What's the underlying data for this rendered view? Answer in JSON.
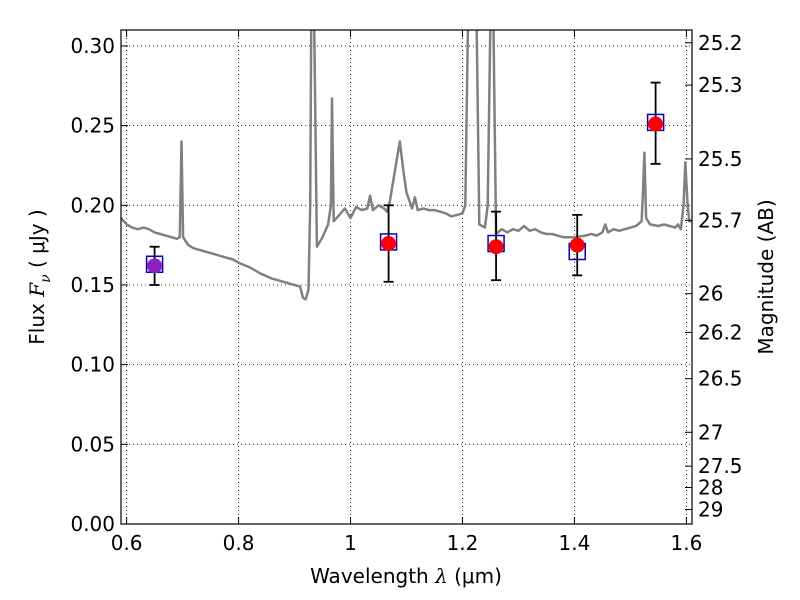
{
  "chart_data": {
    "type": "scatter",
    "xlabel": {
      "prefix": "Wavelength  ",
      "symbol": "λ",
      "unit": " (μm)"
    },
    "ylabel": {
      "prefix": "Flux  ",
      "symbol": "F",
      "subscript": "ν",
      "unit": "  ( μJy )"
    },
    "ylabel_right": "Magnitude (AB)",
    "xlim": [
      0.59,
      1.61
    ],
    "ylim": [
      0.0,
      0.31
    ],
    "grid": true,
    "x_ticks": [
      {
        "value": 0.6,
        "label": "0.6"
      },
      {
        "value": 0.8,
        "label": "0.8"
      },
      {
        "value": 1.0,
        "label": "1"
      },
      {
        "value": 1.2,
        "label": "1.2"
      },
      {
        "value": 1.4,
        "label": "1.4"
      },
      {
        "value": 1.6,
        "label": "1.6"
      }
    ],
    "y_ticks": [
      {
        "value": 0.0,
        "label": "0.00"
      },
      {
        "value": 0.05,
        "label": "0.05"
      },
      {
        "value": 0.1,
        "label": "0.10"
      },
      {
        "value": 0.15,
        "label": "0.15"
      },
      {
        "value": 0.2,
        "label": "0.20"
      },
      {
        "value": 0.25,
        "label": "0.25"
      },
      {
        "value": 0.3,
        "label": "0.30"
      }
    ],
    "magnitude_ticks": [
      {
        "mag": 25.2,
        "label": "25.2"
      },
      {
        "mag": 25.3,
        "label": "25.3"
      },
      {
        "mag": 25.5,
        "label": "25.5"
      },
      {
        "mag": 25.7,
        "label": "25.7"
      },
      {
        "mag": 26.0,
        "label": "26"
      },
      {
        "mag": 26.2,
        "label": "26.2"
      },
      {
        "mag": 26.5,
        "label": "26.5"
      },
      {
        "mag": 27.0,
        "label": "27"
      },
      {
        "mag": 27.5,
        "label": "27.5"
      },
      {
        "mag": 28.0,
        "label": "28"
      },
      {
        "mag": 29.0,
        "label": "29"
      }
    ],
    "series": [
      {
        "kind": "model-spectrum",
        "color": "#808080",
        "points": [
          [
            0.59,
            0.192
          ],
          [
            0.6,
            0.188
          ],
          [
            0.61,
            0.186
          ],
          [
            0.62,
            0.185
          ],
          [
            0.63,
            0.186
          ],
          [
            0.64,
            0.185
          ],
          [
            0.65,
            0.183
          ],
          [
            0.66,
            0.182
          ],
          [
            0.67,
            0.181
          ],
          [
            0.68,
            0.18
          ],
          [
            0.69,
            0.179
          ],
          [
            0.695,
            0.18
          ],
          [
            0.698,
            0.24
          ],
          [
            0.701,
            0.18
          ],
          [
            0.71,
            0.175
          ],
          [
            0.72,
            0.173
          ],
          [
            0.73,
            0.172
          ],
          [
            0.74,
            0.171
          ],
          [
            0.75,
            0.17
          ],
          [
            0.76,
            0.169
          ],
          [
            0.77,
            0.168
          ],
          [
            0.78,
            0.167
          ],
          [
            0.79,
            0.166
          ],
          [
            0.8,
            0.164
          ],
          [
            0.82,
            0.161
          ],
          [
            0.84,
            0.157
          ],
          [
            0.86,
            0.154
          ],
          [
            0.88,
            0.152
          ],
          [
            0.9,
            0.15
          ],
          [
            0.91,
            0.149
          ],
          [
            0.915,
            0.142
          ],
          [
            0.92,
            0.141
          ],
          [
            0.925,
            0.147
          ],
          [
            0.928,
            0.2
          ],
          [
            0.93,
            0.32
          ],
          [
            0.935,
            0.32
          ],
          [
            0.94,
            0.174
          ],
          [
            0.95,
            0.18
          ],
          [
            0.96,
            0.188
          ],
          [
            0.965,
            0.2
          ],
          [
            0.967,
            0.267
          ],
          [
            0.97,
            0.19
          ],
          [
            0.98,
            0.194
          ],
          [
            0.99,
            0.198
          ],
          [
            1.0,
            0.192
          ],
          [
            1.01,
            0.199
          ],
          [
            1.02,
            0.197
          ],
          [
            1.03,
            0.198
          ],
          [
            1.035,
            0.206
          ],
          [
            1.04,
            0.197
          ],
          [
            1.05,
            0.2
          ],
          [
            1.06,
            0.198
          ],
          [
            1.065,
            0.196
          ],
          [
            1.07,
            0.202
          ],
          [
            1.08,
            0.223
          ],
          [
            1.088,
            0.24
          ],
          [
            1.095,
            0.22
          ],
          [
            1.1,
            0.208
          ],
          [
            1.11,
            0.198
          ],
          [
            1.115,
            0.205
          ],
          [
            1.12,
            0.197
          ],
          [
            1.13,
            0.198
          ],
          [
            1.14,
            0.197
          ],
          [
            1.15,
            0.197
          ],
          [
            1.16,
            0.196
          ],
          [
            1.17,
            0.195
          ],
          [
            1.18,
            0.193
          ],
          [
            1.19,
            0.194
          ],
          [
            1.2,
            0.195
          ],
          [
            1.205,
            0.2
          ],
          [
            1.21,
            0.32
          ],
          [
            1.225,
            0.32
          ],
          [
            1.23,
            0.188
          ],
          [
            1.24,
            0.186
          ],
          [
            1.245,
            0.2
          ],
          [
            1.25,
            0.32
          ],
          [
            1.255,
            0.32
          ],
          [
            1.26,
            0.182
          ],
          [
            1.27,
            0.185
          ],
          [
            1.28,
            0.183
          ],
          [
            1.29,
            0.185
          ],
          [
            1.3,
            0.184
          ],
          [
            1.31,
            0.187
          ],
          [
            1.32,
            0.184
          ],
          [
            1.33,
            0.185
          ],
          [
            1.34,
            0.183
          ],
          [
            1.35,
            0.182
          ],
          [
            1.36,
            0.182
          ],
          [
            1.37,
            0.181
          ],
          [
            1.38,
            0.18
          ],
          [
            1.4,
            0.18
          ],
          [
            1.42,
            0.181
          ],
          [
            1.43,
            0.182
          ],
          [
            1.44,
            0.181
          ],
          [
            1.45,
            0.183
          ],
          [
            1.455,
            0.188
          ],
          [
            1.46,
            0.183
          ],
          [
            1.47,
            0.185
          ],
          [
            1.48,
            0.184
          ],
          [
            1.49,
            0.185
          ],
          [
            1.5,
            0.186
          ],
          [
            1.51,
            0.187
          ],
          [
            1.52,
            0.19
          ],
          [
            1.522,
            0.204
          ],
          [
            1.525,
            0.233
          ],
          [
            1.528,
            0.192
          ],
          [
            1.535,
            0.188
          ],
          [
            1.55,
            0.187
          ],
          [
            1.56,
            0.188
          ],
          [
            1.57,
            0.187
          ],
          [
            1.58,
            0.186
          ],
          [
            1.585,
            0.188
          ],
          [
            1.59,
            0.185
          ],
          [
            1.595,
            0.2
          ],
          [
            1.598,
            0.227
          ],
          [
            1.602,
            0.202
          ],
          [
            1.605,
            0.19
          ],
          [
            1.61,
            0.19
          ]
        ]
      },
      {
        "kind": "model-bands",
        "marker": "open-square",
        "color": "#0000cc",
        "points": [
          [
            0.65,
            0.163
          ],
          [
            1.068,
            0.177
          ],
          [
            1.26,
            0.176
          ],
          [
            1.405,
            0.171
          ],
          [
            1.545,
            0.252
          ]
        ]
      },
      {
        "kind": "observed",
        "marker": "filled-circle",
        "colors": [
          "#8e1fc0",
          "#ff0000",
          "#ff0000",
          "#ff0000",
          "#ff0000"
        ],
        "points": [
          {
            "x": 0.65,
            "y": 0.162,
            "yerr_low": 0.15,
            "yerr_high": 0.174
          },
          {
            "x": 1.068,
            "y": 0.176,
            "yerr_low": 0.152,
            "yerr_high": 0.2
          },
          {
            "x": 1.26,
            "y": 0.174,
            "yerr_low": 0.153,
            "yerr_high": 0.196
          },
          {
            "x": 1.405,
            "y": 0.175,
            "yerr_low": 0.156,
            "yerr_high": 0.194
          },
          {
            "x": 1.545,
            "y": 0.251,
            "yerr_low": 0.226,
            "yerr_high": 0.277
          }
        ]
      }
    ]
  }
}
